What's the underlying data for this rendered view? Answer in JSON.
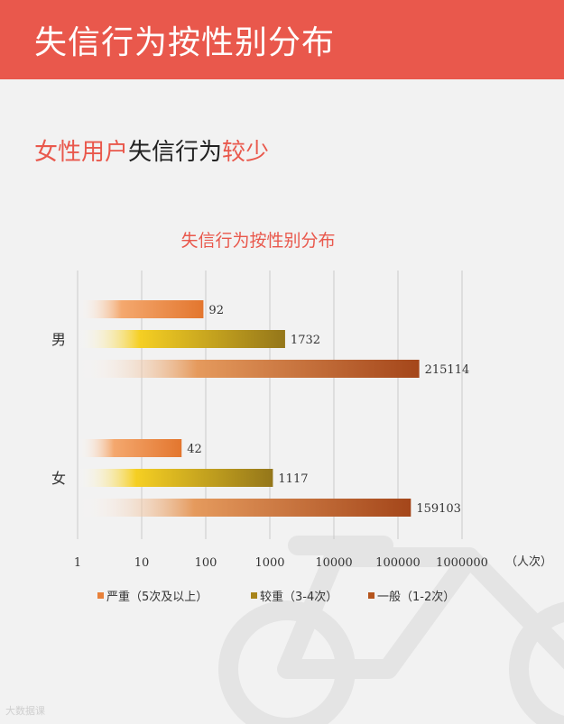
{
  "header": {
    "title": "失信行为按性别分布"
  },
  "subtitle": {
    "part1": "女性用户",
    "part2": "失信行为",
    "part3": "较少"
  },
  "chart_data": {
    "type": "bar",
    "orientation": "horizontal",
    "title": "失信行为按性别分布",
    "x_scale": "log",
    "xlim": [
      1,
      1000000
    ],
    "x_ticks": [
      "1",
      "10",
      "100",
      "1000",
      "10000",
      "100000",
      "1000000"
    ],
    "xlabel": "（人次）",
    "grid": true,
    "legend_position": "bottom",
    "categories": [
      "男",
      "女"
    ],
    "series": [
      {
        "name": "严重（5次及以上）",
        "values": [
          92,
          42
        ],
        "labels": [
          "92",
          "42"
        ],
        "color": "#e8813a"
      },
      {
        "name": "较重（3-4次）",
        "values": [
          1732,
          1117
        ],
        "labels": [
          "1732",
          "1117"
        ],
        "color": "#a8841a"
      },
      {
        "name": "一般（1-2次）",
        "values": [
          215114,
          159103
        ],
        "labels": [
          "215114",
          "159103"
        ],
        "color": "#b5541d"
      }
    ]
  },
  "watermark": "大数据课"
}
